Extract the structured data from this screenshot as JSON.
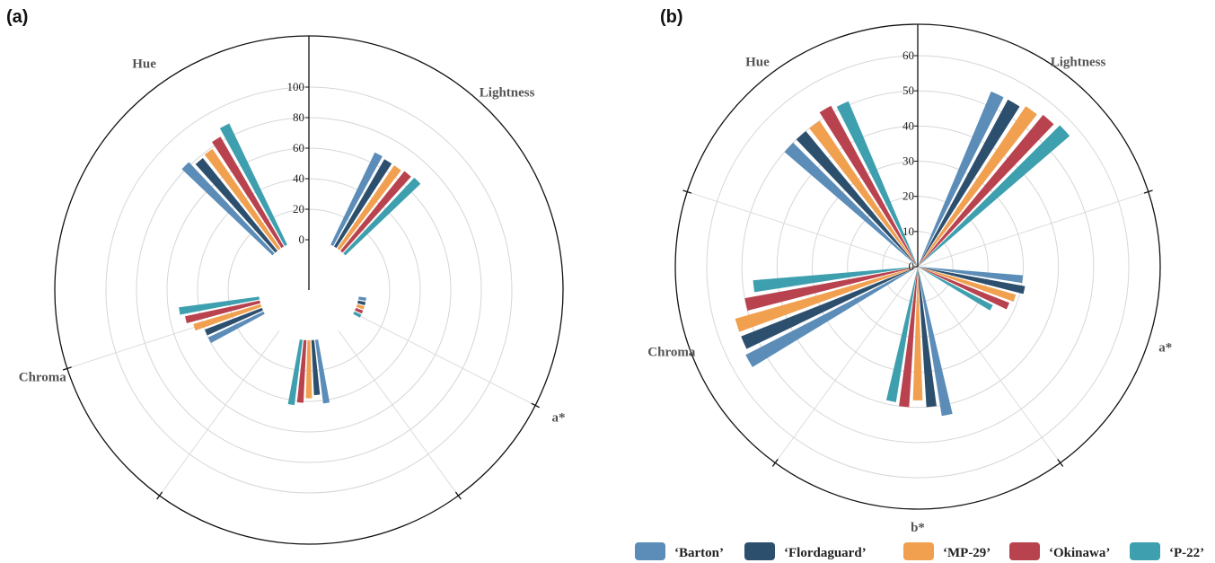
{
  "colors": {
    "Barton": "#5b8db8",
    "Flordaguard": "#2d4f6e",
    "MP-29": "#f0a04f",
    "Okinawa": "#b8434f",
    "P-22": "#3e9fae"
  },
  "legend": [
    {
      "key": "Barton",
      "label": "‘Barton’"
    },
    {
      "key": "Flordaguard",
      "label": "‘Flordaguard’"
    },
    {
      "key": "MP-29",
      "label": "‘MP-29’"
    },
    {
      "key": "Okinawa",
      "label": "‘Okinawa’"
    },
    {
      "key": "P-22",
      "label": "‘P-22’"
    }
  ],
  "chart_data": [
    {
      "type": "radial bar",
      "panel": "(a)",
      "rlim": [
        0,
        100
      ],
      "ticks": [
        "100",
        "80",
        "60",
        "40",
        "20",
        "0"
      ],
      "categories": [
        "Lightness",
        "a*",
        "b*",
        "Chroma",
        "Hue"
      ],
      "series": [
        {
          "name": "‘Barton’",
          "values": [
            67,
            5,
            42,
            40,
            82
          ]
        },
        {
          "name": "‘Flordaguard’",
          "values": [
            66,
            5,
            36,
            40,
            78
          ]
        },
        {
          "name": "‘MP-29’",
          "values": [
            66,
            5,
            38,
            46,
            79
          ]
        },
        {
          "name": "‘Okinawa’",
          "values": [
            67,
            5,
            41,
            50,
            83
          ]
        },
        {
          "name": "‘P-22’",
          "values": [
            68,
            5,
            43,
            53,
            88
          ]
        }
      ],
      "grid": true
    },
    {
      "type": "radial bar",
      "panel": "(b)",
      "rlim": [
        0,
        60
      ],
      "ticks": [
        "60",
        "50",
        "40",
        "30",
        "20",
        "10",
        "0"
      ],
      "categories": [
        "Lightness",
        "a*",
        "b*",
        "Chroma",
        "Hue"
      ],
      "series": [
        {
          "name": "‘Barton’",
          "values": [
            54,
            30,
            43,
            55,
            50
          ]
        },
        {
          "name": "‘Flordaguard’",
          "values": [
            54,
            31,
            40,
            54,
            50
          ]
        },
        {
          "name": "‘MP-29’",
          "values": [
            55,
            29,
            38,
            54,
            50
          ]
        },
        {
          "name": "‘Okinawa’",
          "values": [
            56,
            28,
            40,
            50,
            52
          ]
        },
        {
          "name": "‘P-22’",
          "values": [
            57,
            24,
            39,
            47,
            51
          ]
        }
      ],
      "grid": true
    }
  ]
}
